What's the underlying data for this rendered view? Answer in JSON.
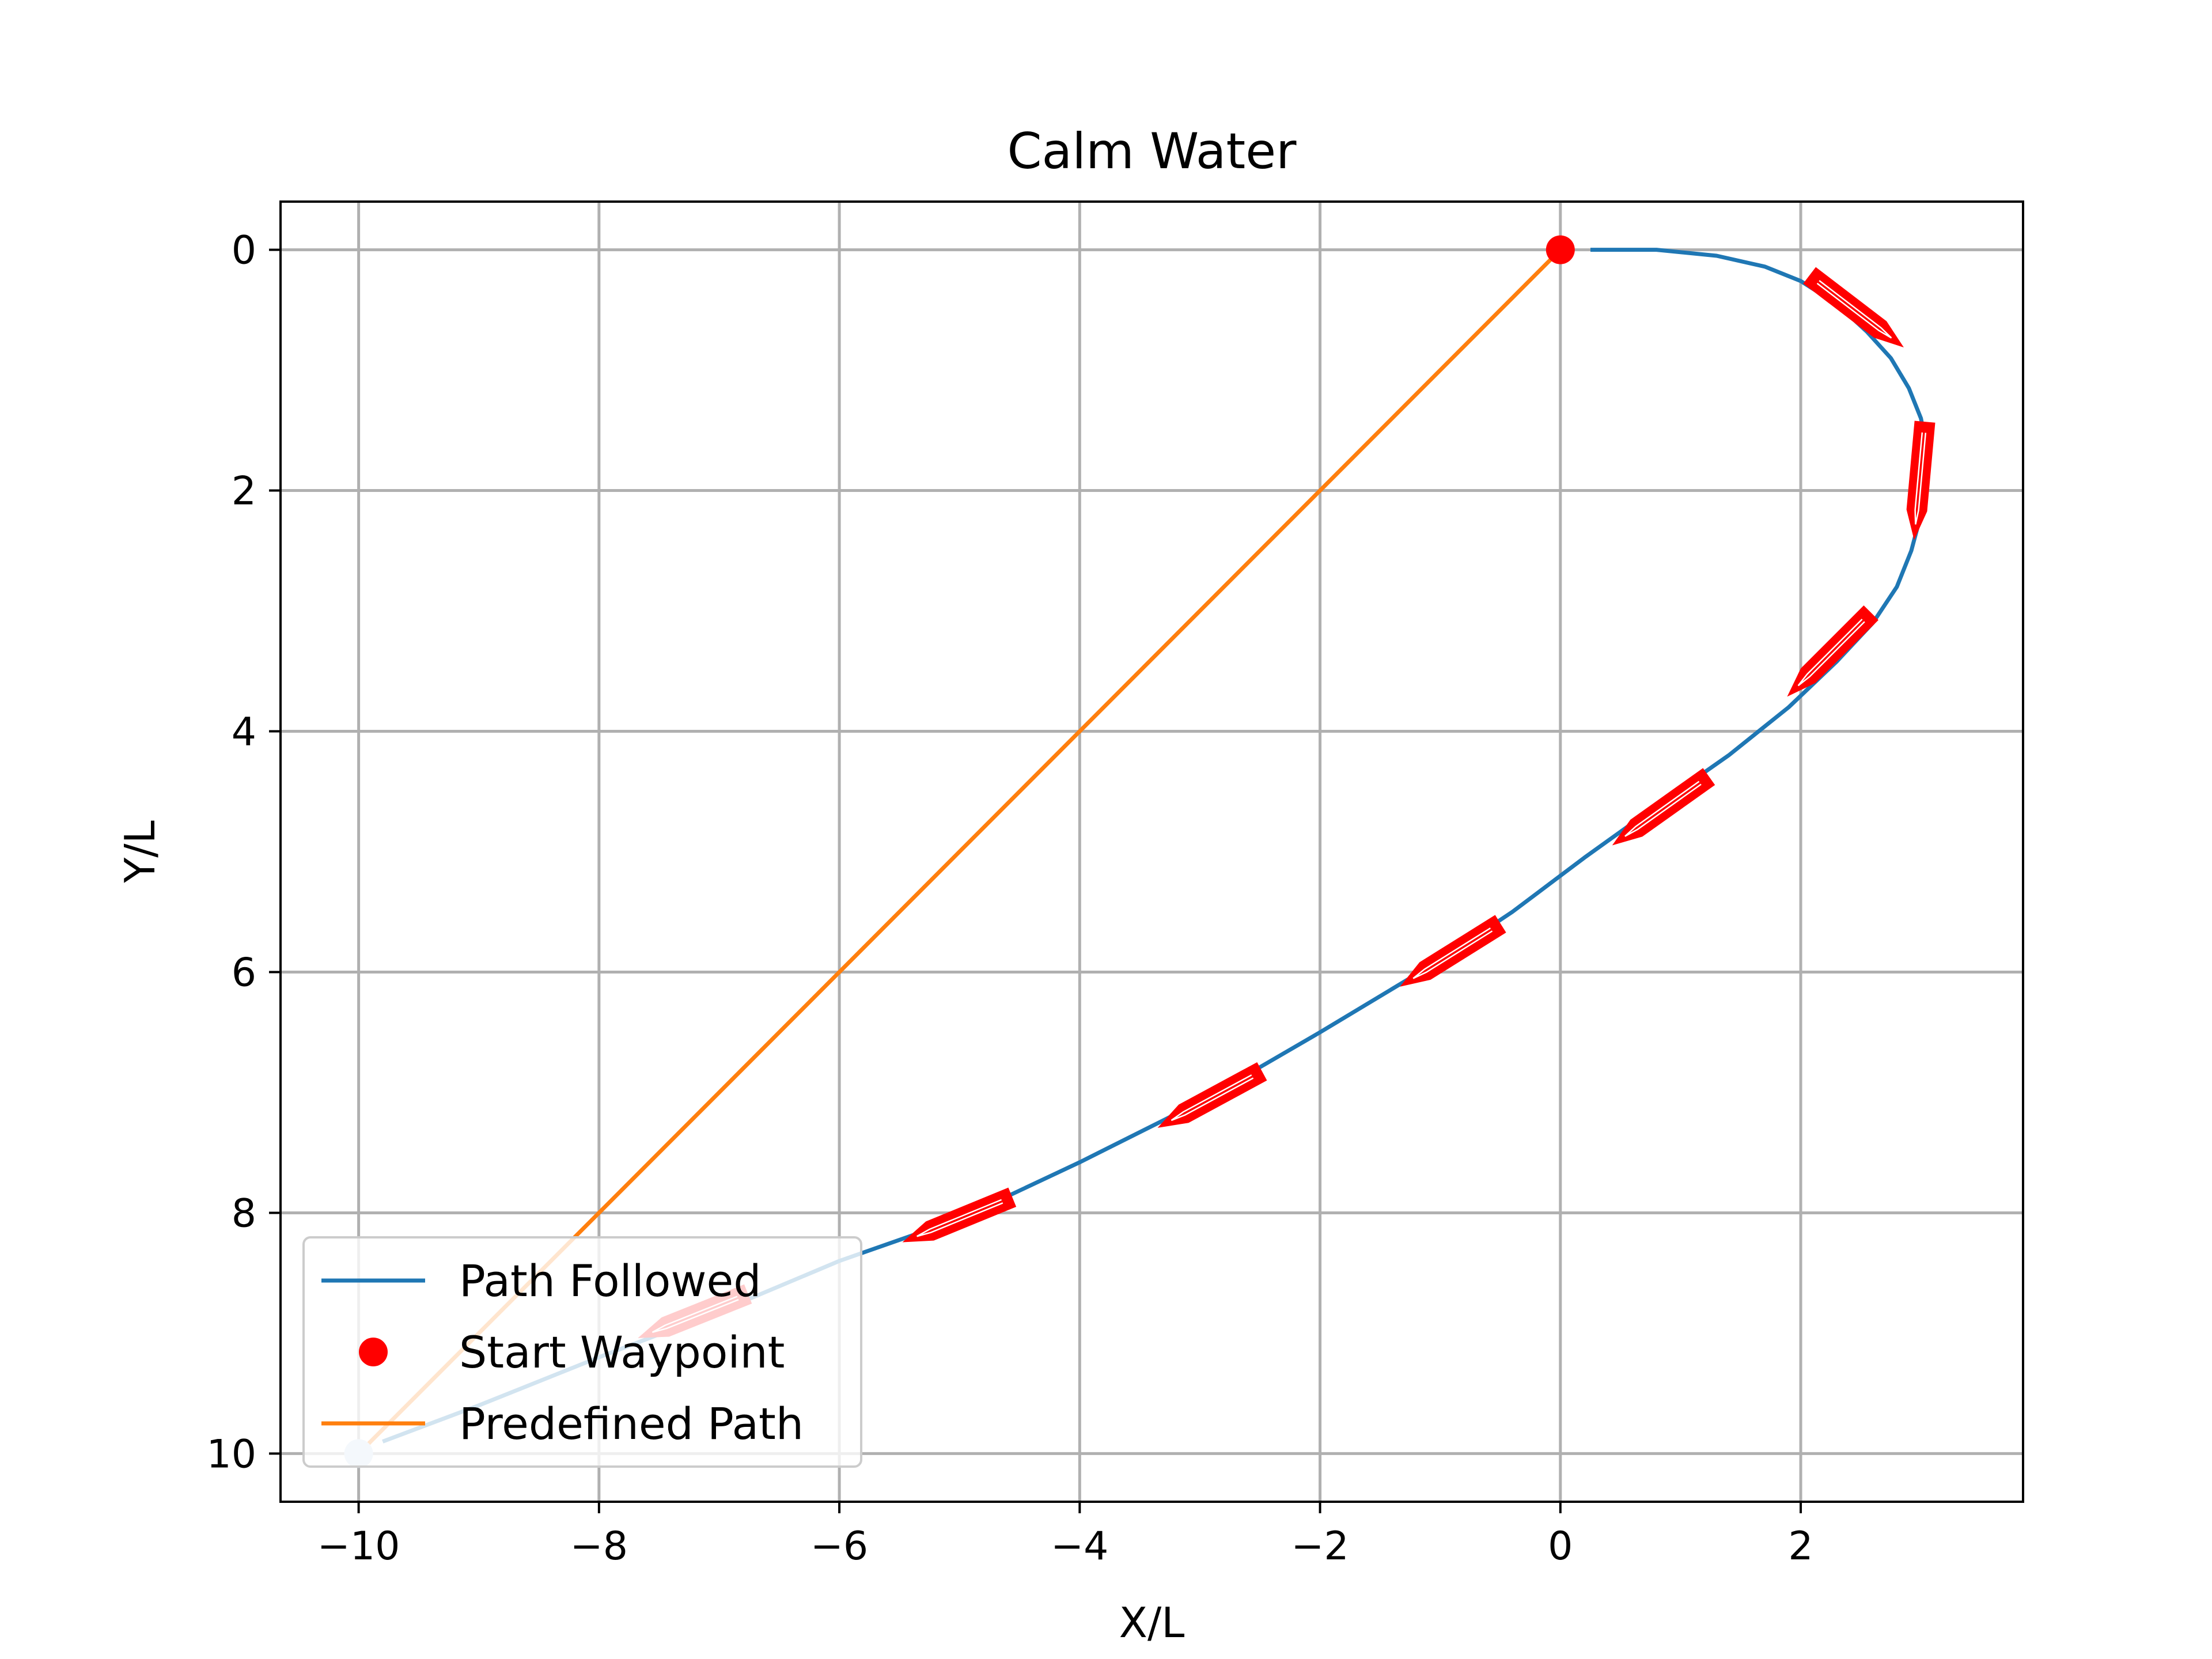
{
  "chart_data": {
    "type": "line",
    "title": "Calm Water",
    "xlabel": "X/L",
    "ylabel": "Y/L",
    "xlim": [
      -10.65,
      3.85
    ],
    "ylim": [
      10.4,
      -0.4
    ],
    "y_inverted": true,
    "grid": true,
    "x_ticks": [
      {
        "value": -10,
        "label": "−10"
      },
      {
        "value": -8,
        "label": "−8"
      },
      {
        "value": -6,
        "label": "−6"
      },
      {
        "value": -4,
        "label": "−4"
      },
      {
        "value": -2,
        "label": "−2"
      },
      {
        "value": 0,
        "label": "0"
      },
      {
        "value": 2,
        "label": "2"
      }
    ],
    "y_ticks": [
      {
        "value": 0,
        "label": "0"
      },
      {
        "value": 2,
        "label": "2"
      },
      {
        "value": 4,
        "label": "4"
      },
      {
        "value": 6,
        "label": "6"
      },
      {
        "value": 8,
        "label": "8"
      },
      {
        "value": 10,
        "label": "10"
      }
    ],
    "series": [
      {
        "name": "Path Followed",
        "kind": "line",
        "color": "#1f77b4",
        "points": [
          [
            0.25,
            0.0
          ],
          [
            0.8,
            0.0
          ],
          [
            1.3,
            0.05
          ],
          [
            1.7,
            0.14
          ],
          [
            2.0,
            0.26
          ],
          [
            2.3,
            0.45
          ],
          [
            2.55,
            0.68
          ],
          [
            2.75,
            0.9
          ],
          [
            2.9,
            1.15
          ],
          [
            3.0,
            1.4
          ],
          [
            3.05,
            1.65
          ],
          [
            3.05,
            1.95
          ],
          [
            3.0,
            2.2
          ],
          [
            2.92,
            2.5
          ],
          [
            2.8,
            2.8
          ],
          [
            2.6,
            3.1
          ],
          [
            2.3,
            3.42
          ],
          [
            1.9,
            3.8
          ],
          [
            1.4,
            4.2
          ],
          [
            0.8,
            4.62
          ],
          [
            0.2,
            5.05
          ],
          [
            -0.4,
            5.5
          ],
          [
            -1.0,
            5.9
          ],
          [
            -2.0,
            6.5
          ],
          [
            -3.0,
            7.08
          ],
          [
            -4.0,
            7.58
          ],
          [
            -5.0,
            8.05
          ],
          [
            -6.0,
            8.4
          ],
          [
            -7.0,
            8.82
          ],
          [
            -8.0,
            9.2
          ],
          [
            -9.0,
            9.6
          ],
          [
            -9.8,
            9.9
          ]
        ]
      },
      {
        "name": "Start Waypoint",
        "kind": "marker",
        "color": "#ff0000",
        "points": [
          [
            0,
            0
          ]
        ]
      },
      {
        "name": "Predefined Path",
        "kind": "line",
        "color": "#ff7f0e",
        "points": [
          [
            0,
            0
          ],
          [
            -10,
            10
          ]
        ]
      }
    ],
    "vessel_markers": {
      "color": "#ff0000",
      "positions": [
        [
          2.45,
          0.5
        ],
        [
          2.99,
          1.9
        ],
        [
          2.25,
          3.35
        ],
        [
          0.85,
          4.65
        ],
        [
          -0.9,
          5.85
        ],
        [
          -2.9,
          7.05
        ],
        [
          -5.0,
          8.05
        ],
        [
          -7.2,
          8.85
        ]
      ]
    },
    "end_marker": {
      "point": [
        -10,
        10
      ],
      "color": "#c8dcee"
    },
    "legend": {
      "placement": "lower-left",
      "entries": [
        "Path Followed",
        "Start Waypoint",
        "Predefined Path"
      ]
    }
  }
}
